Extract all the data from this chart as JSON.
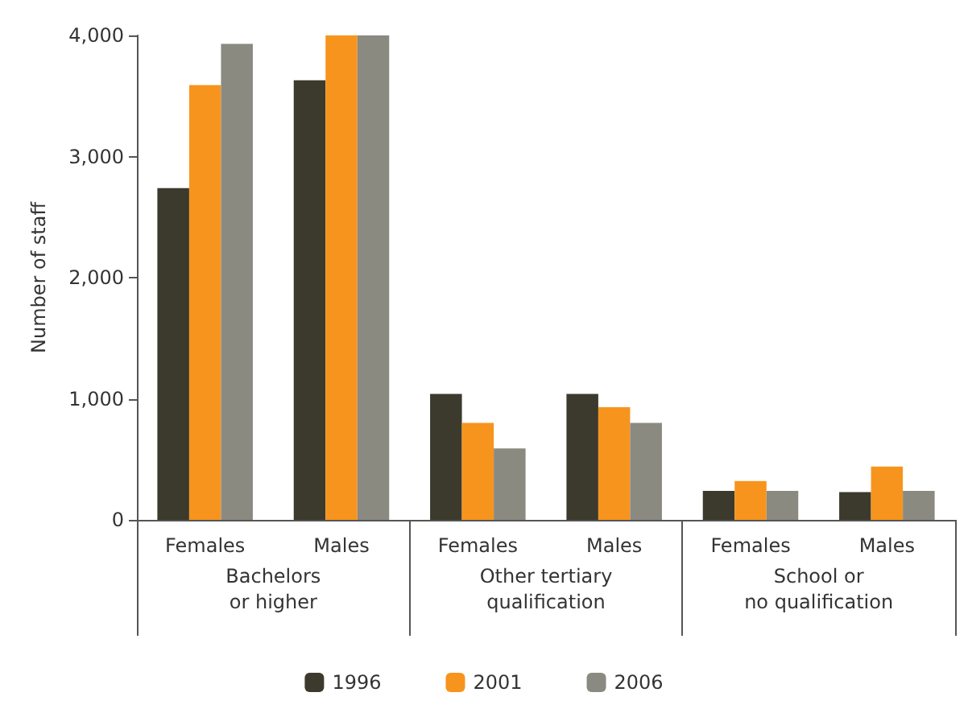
{
  "chart_data": {
    "type": "bar",
    "ylabel": "Number of staff",
    "categories": [
      "Females",
      "Males",
      "Females",
      "Males",
      "Females",
      "Males"
    ],
    "annotations": [
      "Bachelors\nor higher",
      "Other tertiary\nqualification",
      "School or\nno qualification"
    ],
    "series": [
      {
        "name": "1996",
        "color": "#3b3a2c",
        "values": [
          2740,
          3630,
          1040,
          1040,
          240,
          230
        ]
      },
      {
        "name": "2001",
        "color": "#f7941d",
        "values": [
          3590,
          4000,
          800,
          930,
          320,
          440
        ]
      },
      {
        "name": "2006",
        "color": "#8a8a80",
        "values": [
          3930,
          4000,
          590,
          800,
          240,
          240
        ]
      }
    ],
    "ylim": [
      0,
      4000
    ],
    "yticks": [
      {
        "value": 0,
        "label": "0"
      },
      {
        "value": 1000,
        "label": "1,000"
      },
      {
        "value": 2000,
        "label": "2,000"
      },
      {
        "value": 3000,
        "label": "3,000"
      },
      {
        "value": 4000,
        "label": "4,000"
      }
    ],
    "grid": false,
    "legend": "bottom"
  }
}
